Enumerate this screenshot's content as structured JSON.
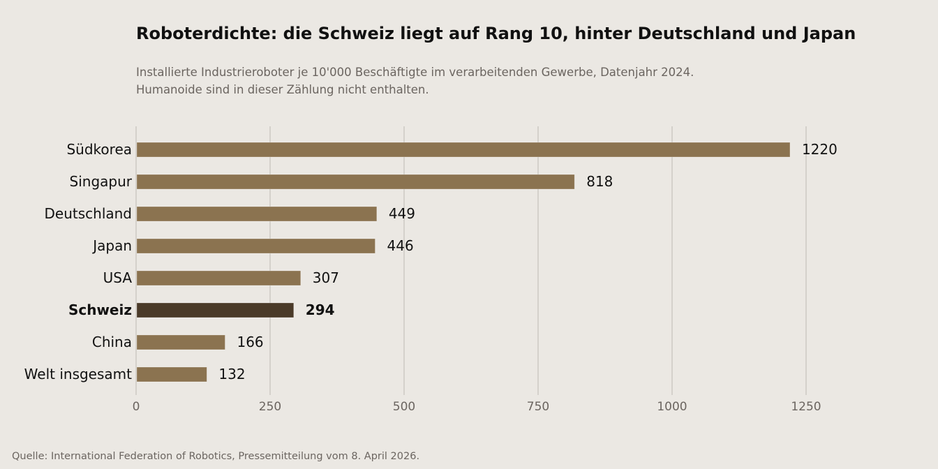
{
  "header": {
    "title": "Roboterdichte: die Schweiz liegt auf Rang 10, hinter Deutschland und Japan",
    "subtitle_lines": [
      "Installierte Industrieroboter je 10'000 Beschäftigte im verarbeitenden Gewerbe, Datenjahr 2024.",
      "Humanoide sind in dieser Zählung nicht enthalten."
    ]
  },
  "footer": {
    "source": "Quelle: International Federation of Robotics, Pressemitteilung vom 8. April 2026."
  },
  "colors": {
    "bar": "#8b7350",
    "bar_highlight": "#4a3a28",
    "grid": "#cbc7c1",
    "tick_label": "#6b6560",
    "text": "#111111",
    "background": "#ebe8e3"
  },
  "chart_data": {
    "type": "bar",
    "orientation": "horizontal",
    "categories": [
      "Südkorea",
      "Singapur",
      "Deutschland",
      "Japan",
      "USA",
      "Schweiz",
      "China",
      "Welt insgesamt"
    ],
    "values": [
      1220,
      818,
      449,
      446,
      307,
      294,
      166,
      132
    ],
    "highlight": "Schweiz",
    "xlim": [
      0,
      1400
    ],
    "xticks": [
      0,
      250,
      500,
      750,
      1000,
      1250
    ],
    "grid": "vertical",
    "data_labels": true
  }
}
